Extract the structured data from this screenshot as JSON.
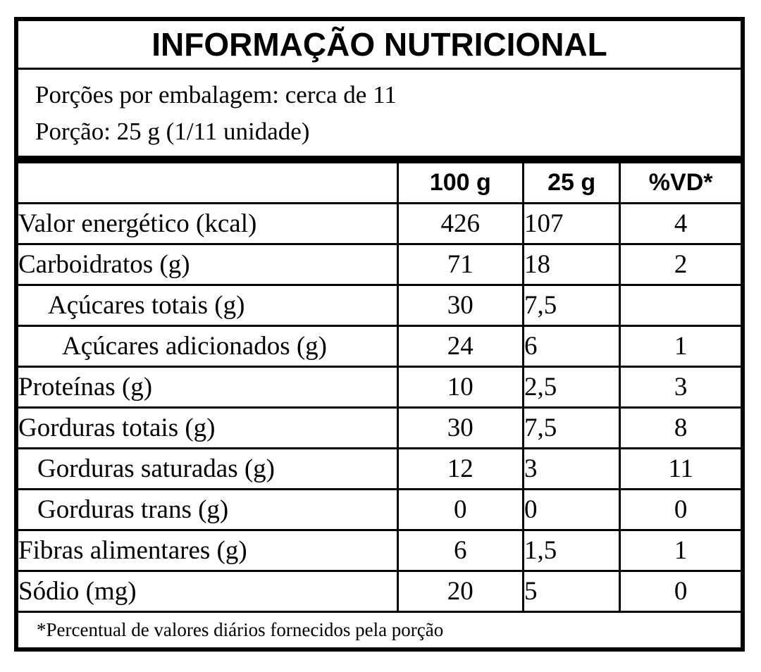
{
  "title": "INFORMAÇÃO NUTRICIONAL",
  "serving_info": {
    "servings_per_package": "Porções por embalagem: cerca de 11",
    "serving_size": "Porção: 25 g (1/11  unidade)"
  },
  "table": {
    "columns": [
      "100 g",
      "25 g",
      "%VD*"
    ],
    "rows": [
      {
        "label": "Valor energético (kcal)",
        "per_100g": "426",
        "per_25g": "107",
        "pct_vd": "4",
        "indent": 0
      },
      {
        "label": "Carboidratos (g)",
        "per_100g": "71",
        "per_25g": "18",
        "pct_vd": "2",
        "indent": 0
      },
      {
        "label": "Açúcares totais (g)",
        "per_100g": "30",
        "per_25g": "7,5",
        "pct_vd": "",
        "indent": 2
      },
      {
        "label": "Açúcares adicionados (g)",
        "per_100g": "24",
        "per_25g": "6",
        "pct_vd": "1",
        "indent": 3
      },
      {
        "label": "Proteínas (g)",
        "per_100g": "10",
        "per_25g": "2,5",
        "pct_vd": "3",
        "indent": 0
      },
      {
        "label": "Gorduras totais (g)",
        "per_100g": "30",
        "per_25g": "7,5",
        "pct_vd": "8",
        "indent": 0
      },
      {
        "label": "Gorduras saturadas (g)",
        "per_100g": "12",
        "per_25g": "3",
        "pct_vd": "11",
        "indent": 1
      },
      {
        "label": "Gorduras trans (g)",
        "per_100g": "0",
        "per_25g": "0",
        "pct_vd": "0",
        "indent": 1
      },
      {
        "label": "Fibras alimentares (g)",
        "per_100g": "6",
        "per_25g": "1,5",
        "pct_vd": "1",
        "indent": 0
      },
      {
        "label": "Sódio (mg)",
        "per_100g": "20",
        "per_25g": "5",
        "pct_vd": "0",
        "indent": 0
      }
    ]
  },
  "footnote": "*Percentual de valores diários fornecidos pela porção",
  "colors": {
    "border": "#000000",
    "background": "#ffffff",
    "text": "#000000"
  }
}
